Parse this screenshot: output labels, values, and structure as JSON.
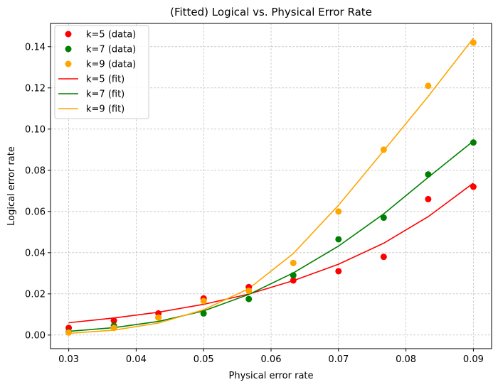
{
  "chart_data": {
    "type": "line",
    "title": "(Fitted) Logical vs. Physical Error Rate",
    "xlabel": "Physical error rate",
    "ylabel": "Logical error rate",
    "xlim": [
      0.0273,
      0.0927
    ],
    "ylim": [
      -0.0066,
      0.1513
    ],
    "xticks": [
      0.03,
      0.04,
      0.05,
      0.06,
      0.07,
      0.08,
      0.09
    ],
    "xtick_labels": [
      "0.03",
      "0.04",
      "0.05",
      "0.06",
      "0.07",
      "0.08",
      "0.09"
    ],
    "yticks": [
      0.0,
      0.02,
      0.04,
      0.06,
      0.08,
      0.1,
      0.12,
      0.14
    ],
    "ytick_labels": [
      "0.00",
      "0.02",
      "0.04",
      "0.06",
      "0.08",
      "0.10",
      "0.12",
      "0.14"
    ],
    "grid": true,
    "legend_position": "top-left",
    "x": [
      0.03,
      0.0367,
      0.0433,
      0.05,
      0.0567,
      0.0633,
      0.07,
      0.0767,
      0.0833,
      0.09
    ],
    "series": [
      {
        "name": "k=5 (data)",
        "kind": "scatter",
        "color": "#ff0000",
        "values": [
          0.0035,
          0.007,
          0.0105,
          0.0178,
          0.0233,
          0.0265,
          0.031,
          0.038,
          0.066,
          0.072
        ]
      },
      {
        "name": "k=7 (data)",
        "kind": "scatter",
        "color": "#008000",
        "values": [
          0.0015,
          0.0045,
          0.0085,
          0.0105,
          0.0175,
          0.029,
          0.0465,
          0.057,
          0.078,
          0.0935
        ]
      },
      {
        "name": "k=9 (data)",
        "kind": "scatter",
        "color": "#ffa500",
        "values": [
          0.0012,
          0.0035,
          0.0085,
          0.0165,
          0.0215,
          0.035,
          0.06,
          0.09,
          0.121,
          0.142
        ]
      },
      {
        "name": "k=5 (fit)",
        "kind": "line",
        "color": "#ff0000",
        "values": [
          0.006,
          0.0083,
          0.0111,
          0.0149,
          0.0199,
          0.0264,
          0.0344,
          0.0446,
          0.0575,
          0.0738
        ]
      },
      {
        "name": "k=7 (fit)",
        "kind": "line",
        "color": "#008000",
        "values": [
          0.0018,
          0.0036,
          0.0066,
          0.0117,
          0.0197,
          0.0302,
          0.0432,
          0.0588,
          0.0766,
          0.0942
        ]
      },
      {
        "name": "k=9 (fit)",
        "kind": "line",
        "color": "#ffa500",
        "values": [
          0.0008,
          0.0024,
          0.0058,
          0.0123,
          0.0225,
          0.0396,
          0.063,
          0.0895,
          0.1159,
          0.1442
        ]
      }
    ]
  }
}
